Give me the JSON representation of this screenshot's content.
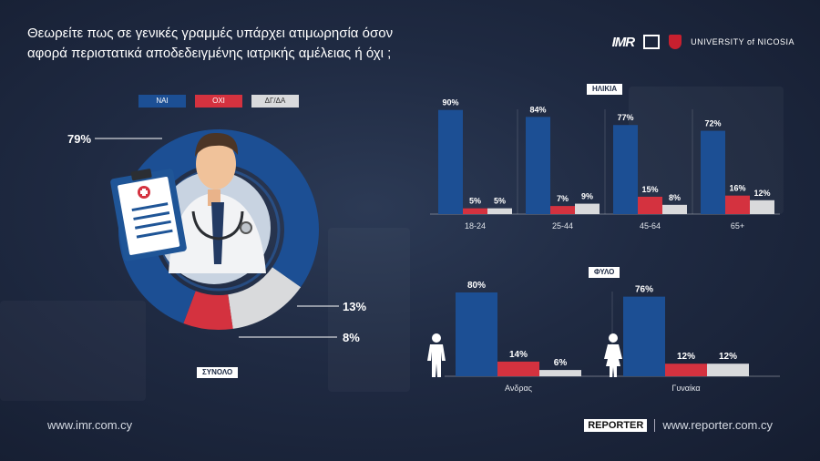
{
  "title_line1": "Θεωρείτε πως σε γενικές γραμμές υπάρχει ατιμωρησία όσον",
  "title_line2": "αφορά περιστατικά αποδεδειγμένης ιατρικής αμέλειας ή όχι ;",
  "logos": {
    "imr": "IMR",
    "unic": "UNIVERSITY of NICOSIA"
  },
  "legend": [
    "ΝΑΙ",
    "ΟΧΙ",
    "ΔΓ/ΔΑ"
  ],
  "colors": {
    "yes": "#1c4f94",
    "no": "#d4323f",
    "dk": "#d9dadc"
  },
  "sections": {
    "total": "ΣΥΝΟΛΟ",
    "age": "ΗΛΙΚΙΑ",
    "gender": "ΦΥΛΟ"
  },
  "chart_data": [
    {
      "type": "pie",
      "title": "ΣΥΝΟΛΟ",
      "categories": [
        "ΝΑΙ",
        "ΟΧΙ",
        "ΔΓ/ΔΑ"
      ],
      "values": [
        79,
        8,
        13
      ],
      "labels": [
        "79%",
        "8%",
        "13%"
      ]
    },
    {
      "type": "bar",
      "title": "ΗΛΙΚΙΑ",
      "categories": [
        "18-24",
        "25-44",
        "45-64",
        "65+"
      ],
      "series": [
        {
          "name": "ΝΑΙ",
          "values": [
            90,
            84,
            77,
            72
          ]
        },
        {
          "name": "ΟΧΙ",
          "values": [
            5,
            7,
            15,
            16
          ]
        },
        {
          "name": "ΔΓ/ΔΑ",
          "values": [
            5,
            9,
            8,
            12
          ]
        }
      ]
    },
    {
      "type": "bar",
      "title": "ΦΥΛΟ",
      "categories": [
        "Ανδρας",
        "Γυναίκα"
      ],
      "series": [
        {
          "name": "ΝΑΙ",
          "values": [
            80,
            76
          ]
        },
        {
          "name": "ΟΧΙ",
          "values": [
            14,
            12
          ]
        },
        {
          "name": "ΔΓ/ΔΑ",
          "values": [
            6,
            12
          ]
        }
      ]
    }
  ],
  "footer": {
    "left": "www.imr.com.cy",
    "brand": "REPORTER",
    "right": "www.reporter.com.cy"
  }
}
